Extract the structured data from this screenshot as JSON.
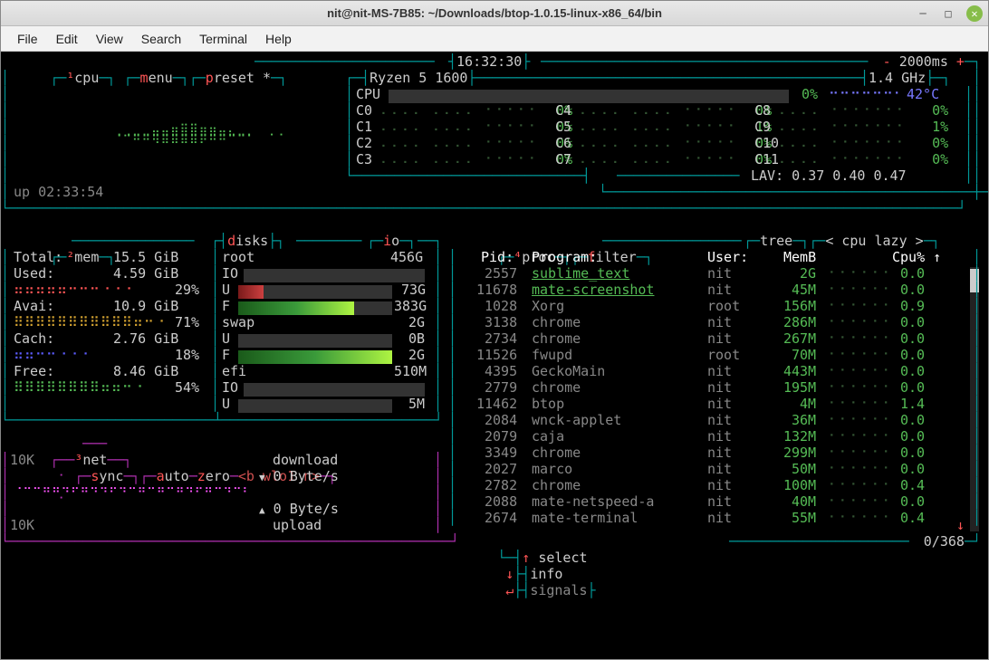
{
  "window": {
    "title": "nit@nit-MS-7B85: ~/Downloads/btop-1.0.15-linux-x86_64/bin"
  },
  "menubar": [
    "File",
    "Edit",
    "View",
    "Search",
    "Terminal",
    "Help"
  ],
  "clock": "16:32:30",
  "refresh_ms": "2000ms",
  "cpu": {
    "label1": "cpu",
    "label2": "menu",
    "label3": "preset *",
    "name": "Ryzen 5 1600",
    "freq": "1.4 GHz",
    "total_pct": "0%",
    "temp": "42°C",
    "uptime": "up 02:33:54",
    "cores": [
      {
        "id": "C0",
        "pct": "0%"
      },
      {
        "id": "C1",
        "pct": "0%"
      },
      {
        "id": "C2",
        "pct": "0%"
      },
      {
        "id": "C3",
        "pct": "0%"
      },
      {
        "id": "C4",
        "pct": "0%"
      },
      {
        "id": "C5",
        "pct": "1%"
      },
      {
        "id": "C6",
        "pct": "0%"
      },
      {
        "id": "C7",
        "pct": "0%"
      },
      {
        "id": "C8",
        "pct": "0%"
      },
      {
        "id": "C9",
        "pct": "1%"
      },
      {
        "id": "C10",
        "pct": "0%"
      },
      {
        "id": "C11",
        "pct": "0%"
      }
    ],
    "lav": "LAV: 0.37 0.40 0.47"
  },
  "mem": {
    "header": "mem",
    "total_lbl": "Total:",
    "total": "15.5 GiB",
    "used_lbl": "Used:",
    "used": "4.59 GiB",
    "used_pct": "29%",
    "avail_lbl": "Avai:",
    "avail": "10.9 GiB",
    "avail_pct": "71%",
    "cache_lbl": "Cach:",
    "cache": "2.76 GiB",
    "cache_pct": "18%",
    "free_lbl": "Free:",
    "free": "8.46 GiB",
    "free_pct": "54%"
  },
  "disks": {
    "header_d": "disks",
    "header_io": "io",
    "root_lbl": "root",
    "root_size": "456G",
    "root_io": "IO",
    "root_u_lbl": "U",
    "root_u": "73G",
    "root_f_lbl": "F",
    "root_f": "383G",
    "swap_lbl": "swap",
    "swap_size": "2G",
    "swap_u_lbl": "U",
    "swap_u": "0B",
    "swap_f_lbl": "F",
    "swap_f": "2G",
    "efi_lbl": "efi",
    "efi_size": "510M",
    "efi_io": "IO",
    "efi_u_lbl": "U",
    "efi_u": "5M"
  },
  "net": {
    "header": "net",
    "sync": "sync",
    "auto": "auto",
    "zero": "zero",
    "iface": "<b wlo1 n>",
    "download_lbl": "download",
    "download": "0 Byte/s",
    "upload_lbl": "upload",
    "upload": "0 Byte/s",
    "scale": "10K"
  },
  "proc": {
    "header": "proc",
    "filter": "filter",
    "tree": "tree",
    "sort": "< cpu lazy >",
    "cols": {
      "pid": "Pid:",
      "program": "Program:",
      "user": "User:",
      "mem": "MemB",
      "cpu": "Cpu% ↑"
    },
    "rows": [
      {
        "pid": "2557",
        "prog": "sublime_text",
        "user": "nit",
        "mem": "2G",
        "cpu": "0.0"
      },
      {
        "pid": "11678",
        "prog": "mate-screenshot",
        "user": "nit",
        "mem": "45M",
        "cpu": "0.0"
      },
      {
        "pid": "1028",
        "prog": "Xorg",
        "user": "root",
        "mem": "156M",
        "cpu": "0.9"
      },
      {
        "pid": "3138",
        "prog": "chrome",
        "user": "nit",
        "mem": "286M",
        "cpu": "0.0"
      },
      {
        "pid": "2734",
        "prog": "chrome",
        "user": "nit",
        "mem": "267M",
        "cpu": "0.0"
      },
      {
        "pid": "11526",
        "prog": "fwupd",
        "user": "root",
        "mem": "70M",
        "cpu": "0.0"
      },
      {
        "pid": "4395",
        "prog": "GeckoMain",
        "user": "nit",
        "mem": "443M",
        "cpu": "0.0"
      },
      {
        "pid": "2779",
        "prog": "chrome",
        "user": "nit",
        "mem": "195M",
        "cpu": "0.0"
      },
      {
        "pid": "11462",
        "prog": "btop",
        "user": "nit",
        "mem": "4M",
        "cpu": "1.4"
      },
      {
        "pid": "2084",
        "prog": "wnck-applet",
        "user": "nit",
        "mem": "36M",
        "cpu": "0.0"
      },
      {
        "pid": "2079",
        "prog": "caja",
        "user": "nit",
        "mem": "132M",
        "cpu": "0.0"
      },
      {
        "pid": "3349",
        "prog": "chrome",
        "user": "nit",
        "mem": "299M",
        "cpu": "0.0"
      },
      {
        "pid": "2027",
        "prog": "marco",
        "user": "nit",
        "mem": "50M",
        "cpu": "0.0"
      },
      {
        "pid": "2782",
        "prog": "chrome",
        "user": "nit",
        "mem": "100M",
        "cpu": "0.4"
      },
      {
        "pid": "2088",
        "prog": "mate-netspeed-a",
        "user": "nit",
        "mem": "40M",
        "cpu": "0.0"
      },
      {
        "pid": "2674",
        "prog": "mate-terminal",
        "user": "nit",
        "mem": "55M",
        "cpu": "0.4"
      }
    ],
    "footer": {
      "select": "select",
      "info": "info",
      "signals": "signals",
      "pos": "0/368"
    }
  },
  "colors": {
    "border": "#009999",
    "accent": "#ff5555",
    "text": "#cccccc",
    "dim": "#888888",
    "green": "#55bb55",
    "cyan_bright": "#00ffff",
    "magenta": "#b030b0",
    "blue": "#5c5cff",
    "yellow": "#cccc55",
    "bg": "#000000"
  }
}
